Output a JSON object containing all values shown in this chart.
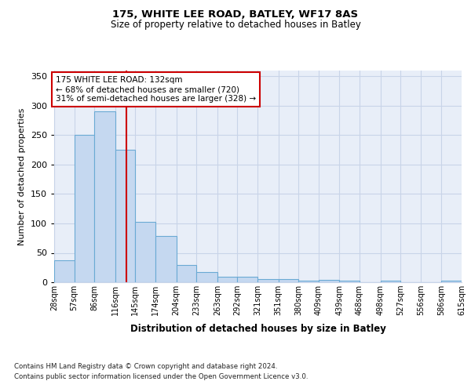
{
  "title1": "175, WHITE LEE ROAD, BATLEY, WF17 8AS",
  "title2": "Size of property relative to detached houses in Batley",
  "xlabel": "Distribution of detached houses by size in Batley",
  "ylabel": "Number of detached properties",
  "footnote1": "Contains HM Land Registry data © Crown copyright and database right 2024.",
  "footnote2": "Contains public sector information licensed under the Open Government Licence v3.0.",
  "bin_edges": [
    28,
    57,
    86,
    116,
    145,
    174,
    204,
    233,
    263,
    292,
    321,
    351,
    380,
    409,
    439,
    468,
    498,
    527,
    556,
    586,
    615
  ],
  "bar_heights": [
    38,
    250,
    291,
    225,
    103,
    79,
    29,
    18,
    10,
    10,
    5,
    5,
    3,
    4,
    3,
    0,
    3,
    0,
    0,
    3
  ],
  "bar_color": "#c5d8f0",
  "bar_edgecolor": "#6aaad4",
  "grid_color": "#c8d4e8",
  "bg_color": "#e8eef8",
  "vline_x": 132,
  "vline_color": "#cc0000",
  "annotation_text": "175 WHITE LEE ROAD: 132sqm\n← 68% of detached houses are smaller (720)\n31% of semi-detached houses are larger (328) →",
  "annotation_box_color": "#ffffff",
  "annotation_box_edgecolor": "#cc0000",
  "ylim": [
    0,
    360
  ],
  "yticks": [
    0,
    50,
    100,
    150,
    200,
    250,
    300,
    350
  ],
  "tick_labels": [
    "28sqm",
    "57sqm",
    "86sqm",
    "116sqm",
    "145sqm",
    "174sqm",
    "204sqm",
    "233sqm",
    "263sqm",
    "292sqm",
    "321sqm",
    "351sqm",
    "380sqm",
    "409sqm",
    "439sqm",
    "468sqm",
    "498sqm",
    "527sqm",
    "556sqm",
    "586sqm",
    "615sqm"
  ]
}
